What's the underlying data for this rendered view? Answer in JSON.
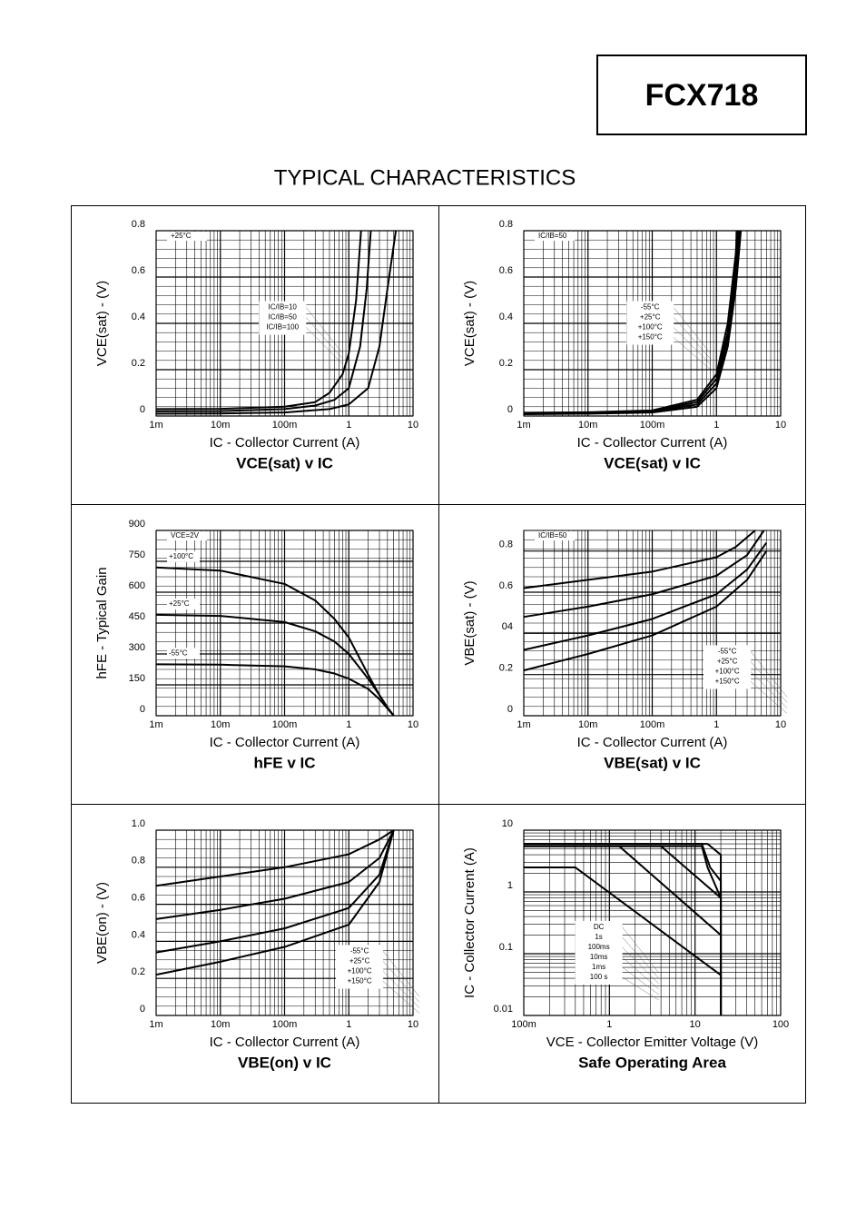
{
  "header": {
    "part": "FCX718",
    "title": "TYPICAL CHARACTERISTICS"
  },
  "chart_data": [
    {
      "type": "line",
      "title": "VCE(sat) v IC",
      "xlabel": "IC - Collector Current (A)",
      "ylabel": "VCE(sat) - (V)",
      "annotation": "+25°C",
      "xlog": true,
      "grid": true,
      "legend": "center",
      "xlim": [
        0.001,
        10
      ],
      "xticks": [
        {
          "value": 0.001,
          "label": "1m"
        },
        {
          "value": 0.01,
          "label": "10m"
        },
        {
          "value": 0.1,
          "label": "100m"
        },
        1,
        10
      ],
      "ylim": [
        0,
        0.8
      ],
      "yticks": [
        0,
        0.2,
        0.4,
        0.6,
        0.8
      ],
      "series": [
        {
          "name": "IC/IB=10",
          "color": "#000000",
          "x": [
            0.001,
            0.01,
            0.1,
            0.5,
            1,
            2,
            3,
            4,
            5.4
          ],
          "values": [
            0.01,
            0.011,
            0.015,
            0.03,
            0.05,
            0.12,
            0.3,
            0.55,
            0.8
          ]
        },
        {
          "name": "IC/IB=50",
          "color": "#000000",
          "x": [
            0.001,
            0.01,
            0.1,
            0.3,
            0.6,
            1,
            1.5,
            1.9,
            2.2
          ],
          "values": [
            0.02,
            0.021,
            0.03,
            0.045,
            0.07,
            0.12,
            0.3,
            0.55,
            0.8
          ]
        },
        {
          "name": "IC/IB=100",
          "color": "#000000",
          "x": [
            0.001,
            0.01,
            0.1,
            0.3,
            0.5,
            0.8,
            1,
            1.3,
            1.55
          ],
          "values": [
            0.03,
            0.031,
            0.04,
            0.06,
            0.1,
            0.18,
            0.27,
            0.5,
            0.8
          ]
        }
      ]
    },
    {
      "type": "line",
      "title": "VCE(sat) v IC",
      "xlabel": "IC - Collector Current (A)",
      "ylabel": "VCE(sat) - (V)",
      "annotation": "IC/IB=50",
      "xlog": true,
      "grid": true,
      "legend": "center",
      "xlim": [
        0.001,
        10
      ],
      "xticks": [
        {
          "value": 0.001,
          "label": "1m"
        },
        {
          "value": 0.01,
          "label": "10m"
        },
        {
          "value": 0.1,
          "label": "100m"
        },
        1,
        10
      ],
      "ylim": [
        0,
        0.8
      ],
      "yticks": [
        0,
        0.2,
        0.4,
        0.6,
        0.8
      ],
      "series": [
        {
          "name": "-55°C",
          "color": "#000000",
          "x": [
            0.001,
            0.01,
            0.1,
            0.5,
            1,
            1.5,
            2,
            2.4
          ],
          "values": [
            0.008,
            0.01,
            0.015,
            0.04,
            0.12,
            0.3,
            0.55,
            0.8
          ]
        },
        {
          "name": "+25°C",
          "color": "#000000",
          "x": [
            0.001,
            0.01,
            0.1,
            0.5,
            1,
            1.5,
            2,
            2.3
          ],
          "values": [
            0.01,
            0.012,
            0.018,
            0.05,
            0.14,
            0.33,
            0.6,
            0.8
          ]
        },
        {
          "name": "+100°C",
          "color": "#000000",
          "x": [
            0.001,
            0.01,
            0.1,
            0.5,
            1,
            1.5,
            2,
            2.2
          ],
          "values": [
            0.012,
            0.014,
            0.021,
            0.06,
            0.16,
            0.36,
            0.65,
            0.8
          ]
        },
        {
          "name": "+150°C",
          "color": "#000000",
          "x": [
            0.001,
            0.01,
            0.1,
            0.5,
            1,
            1.5,
            2,
            2.1
          ],
          "values": [
            0.014,
            0.016,
            0.024,
            0.07,
            0.18,
            0.4,
            0.7,
            0.8
          ]
        }
      ]
    },
    {
      "type": "line",
      "title": "hFE v IC",
      "xlabel": "IC - Collector Current (A)",
      "ylabel": "hFE - Typical Gain",
      "annotation": "VCE=2V",
      "xlog": true,
      "grid": true,
      "legend": "inline",
      "xlim": [
        0.001,
        10
      ],
      "xticks": [
        {
          "value": 0.001,
          "label": "1m"
        },
        {
          "value": 0.01,
          "label": "10m"
        },
        {
          "value": 0.1,
          "label": "100m"
        },
        1,
        10
      ],
      "ylim": [
        0,
        900
      ],
      "yticks": [
        0,
        150,
        300,
        450,
        600,
        750,
        900
      ],
      "series": [
        {
          "name": "+100°C",
          "color": "#000000",
          "x": [
            0.001,
            0.01,
            0.1,
            0.3,
            0.6,
            1,
            2,
            3,
            4,
            5
          ],
          "values": [
            720,
            705,
            640,
            560,
            470,
            380,
            200,
            100,
            40,
            0
          ]
        },
        {
          "name": "+25°C",
          "color": "#000000",
          "x": [
            0.001,
            0.01,
            0.1,
            0.3,
            0.6,
            1,
            2,
            3,
            4,
            5
          ],
          "values": [
            490,
            485,
            455,
            410,
            360,
            300,
            180,
            100,
            40,
            0
          ]
        },
        {
          "name": "-55°C",
          "color": "#000000",
          "x": [
            0.001,
            0.01,
            0.1,
            0.3,
            0.6,
            1,
            2,
            3,
            4,
            5
          ],
          "values": [
            250,
            248,
            240,
            225,
            205,
            180,
            130,
            80,
            35,
            0
          ]
        }
      ]
    },
    {
      "type": "line",
      "title": "VBE(sat) v IC",
      "xlabel": "IC - Collector Current (A)",
      "ylabel": "VBE(sat) - (V)",
      "annotation": "IC/IB=50",
      "xlog": true,
      "grid": true,
      "legend": "bottom-right",
      "xlim": [
        0.001,
        10
      ],
      "xticks": [
        {
          "value": 0.001,
          "label": "1m"
        },
        {
          "value": 0.01,
          "label": "10m"
        },
        {
          "value": 0.1,
          "label": "100m"
        },
        1,
        10
      ],
      "ylim": [
        0,
        0.9
      ],
      "yticks": [
        0,
        0.2,
        {
          "value": 0.4,
          "label": "04"
        },
        0.6,
        0.8
      ],
      "series": [
        {
          "name": "-55°C",
          "color": "#000000",
          "x": [
            0.001,
            0.01,
            0.1,
            1,
            2,
            4
          ],
          "values": [
            0.62,
            0.66,
            0.7,
            0.77,
            0.82,
            0.9
          ]
        },
        {
          "name": "+25°C",
          "color": "#000000",
          "x": [
            0.001,
            0.01,
            0.1,
            1,
            3,
            5.5
          ],
          "values": [
            0.48,
            0.53,
            0.59,
            0.68,
            0.78,
            0.9
          ]
        },
        {
          "name": "+100°C",
          "color": "#000000",
          "x": [
            0.001,
            0.01,
            0.1,
            1,
            3,
            6
          ],
          "values": [
            0.32,
            0.39,
            0.47,
            0.59,
            0.71,
            0.84
          ]
        },
        {
          "name": "+150°C",
          "color": "#000000",
          "x": [
            0.001,
            0.01,
            0.1,
            1,
            3,
            6
          ],
          "values": [
            0.22,
            0.3,
            0.39,
            0.53,
            0.66,
            0.8
          ]
        }
      ]
    },
    {
      "type": "line",
      "title": "VBE(on) v IC",
      "xlabel": "IC - Collector Current (A)",
      "ylabel": "VBE(on) - (V)",
      "xlog": true,
      "grid": true,
      "legend": "bottom-right",
      "xlim": [
        0.001,
        10
      ],
      "xticks": [
        {
          "value": 0.001,
          "label": "1m"
        },
        {
          "value": 0.01,
          "label": "10m"
        },
        {
          "value": 0.1,
          "label": "100m"
        },
        1,
        10
      ],
      "ylim": [
        0,
        1
      ],
      "yticks": [
        0,
        0.2,
        0.4,
        0.6,
        0.8,
        {
          "value": 1,
          "label": "1.0"
        }
      ],
      "series": [
        {
          "name": "-55°C",
          "color": "#000000",
          "x": [
            0.001,
            0.01,
            0.1,
            1,
            3,
            5
          ],
          "values": [
            0.7,
            0.75,
            0.8,
            0.87,
            0.95,
            1
          ]
        },
        {
          "name": "+25°C",
          "color": "#000000",
          "x": [
            0.001,
            0.01,
            0.1,
            1,
            3,
            5
          ],
          "values": [
            0.52,
            0.57,
            0.63,
            0.72,
            0.85,
            1
          ]
        },
        {
          "name": "+100°C",
          "color": "#000000",
          "x": [
            0.001,
            0.01,
            0.1,
            1,
            3,
            5
          ],
          "values": [
            0.34,
            0.4,
            0.47,
            0.58,
            0.76,
            1
          ]
        },
        {
          "name": "+150°C",
          "color": "#000000",
          "x": [
            0.001,
            0.01,
            0.1,
            1,
            3,
            5
          ],
          "values": [
            0.22,
            0.29,
            0.37,
            0.49,
            0.72,
            1
          ]
        }
      ]
    },
    {
      "type": "line",
      "title": "Safe Operating Area",
      "xlabel": "VCE - Collector Emitter Voltage (V)",
      "ylabel": "IC - Collector Current (A)",
      "xlog": true,
      "ylog": true,
      "grid": true,
      "legend": "center-left",
      "xlim": [
        0.1,
        100
      ],
      "xticks": [
        {
          "value": 0.1,
          "label": "100m"
        },
        1,
        10,
        100
      ],
      "ylim": [
        0.01,
        10
      ],
      "yticks": [
        0.01,
        0.1,
        1,
        10
      ],
      "series": [
        {
          "name": "DC",
          "color": "#000000",
          "x": [
            0.1,
            0.4,
            20,
            20
          ],
          "values": [
            2.5,
            2.5,
            0.045,
            0.01
          ]
        },
        {
          "name": "1s",
          "color": "#000000",
          "x": [
            0.1,
            1.3,
            20,
            20
          ],
          "values": [
            5.5,
            5.5,
            0.2,
            0.01
          ]
        },
        {
          "name": "100ms",
          "color": "#000000",
          "x": [
            0.1,
            4,
            20,
            20
          ],
          "values": [
            5.5,
            5.5,
            0.8,
            0.01
          ]
        },
        {
          "name": "10ms",
          "color": "#000000",
          "x": [
            0.1,
            12,
            14,
            20,
            20
          ],
          "values": [
            5.5,
            5.5,
            2.5,
            0.8,
            0.01
          ]
        },
        {
          "name": "1ms",
          "color": "#000000",
          "x": [
            0.1,
            12,
            15,
            20,
            20
          ],
          "values": [
            6,
            6,
            2.5,
            1.5,
            0.01
          ]
        },
        {
          "name": "100 s",
          "color": "#000000",
          "x": [
            0.1,
            14,
            20,
            20
          ],
          "values": [
            6,
            6,
            4,
            0.01
          ]
        }
      ]
    }
  ]
}
